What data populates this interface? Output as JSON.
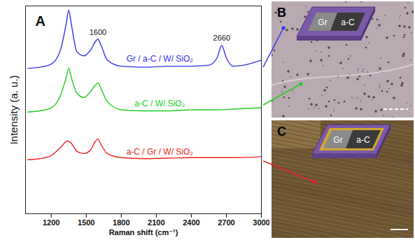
{
  "chart_data": {
    "type": "line",
    "panel_label": "A",
    "xlabel": "Raman shift (cm⁻¹)",
    "ylabel": "Intensity (a. u.)",
    "xlim": [
      980,
      3000
    ],
    "xticks": [
      1200,
      1500,
      1800,
      2100,
      2400,
      2700,
      3000
    ],
    "ylim": [
      0,
      100
    ],
    "tick_labels": "x",
    "grid": false,
    "series": [
      {
        "name": "Gr / a-C / W/ SiO₂",
        "color": "#3333ee",
        "x": [
          1000,
          1100,
          1200,
          1280,
          1330,
          1350,
          1370,
          1420,
          1480,
          1540,
          1580,
          1600,
          1620,
          1680,
          1800,
          2000,
          2200,
          2400,
          2550,
          2620,
          2660,
          2700,
          2760,
          2850,
          2950,
          3000
        ],
        "values": [
          70,
          70.5,
          72,
          79,
          92,
          98,
          92,
          78,
          76,
          79,
          83,
          84,
          82,
          74,
          71,
          70.5,
          71,
          71,
          71.5,
          75,
          81,
          75,
          71,
          71.5,
          73,
          74
        ]
      },
      {
        "name": "a-C / W/ SiO₂",
        "color": "#22cc22",
        "x": [
          1000,
          1100,
          1200,
          1280,
          1330,
          1350,
          1370,
          1420,
          1480,
          1540,
          1580,
          1600,
          1620,
          1680,
          1800,
          2000,
          2200,
          2400,
          2600,
          2800,
          3000
        ],
        "values": [
          49,
          49.5,
          51,
          57,
          66,
          70,
          66,
          58,
          56,
          59,
          62,
          63,
          61,
          54,
          50,
          49.5,
          49.5,
          50,
          50,
          50.5,
          51
        ]
      },
      {
        "name": "a-C / Gr / W/ SiO₂",
        "color": "#ee2222",
        "x": [
          1000,
          1100,
          1200,
          1280,
          1340,
          1370,
          1420,
          1480,
          1540,
          1580,
          1600,
          1620,
          1680,
          1800,
          2000,
          2400,
          2800,
          3000
        ],
        "values": [
          26,
          26.5,
          28,
          32,
          35,
          34,
          30,
          29,
          31,
          35,
          36,
          34,
          29,
          27,
          26.5,
          27,
          27,
          27.5
        ]
      }
    ],
    "annotations": [
      {
        "text": "1600",
        "x": 1600
      },
      {
        "text": "2660",
        "x": 2660
      }
    ]
  },
  "panels": [
    {
      "label": "B",
      "inset": [
        "Gr",
        "a-C"
      ]
    },
    {
      "label": "C",
      "inset": [
        "Gr",
        "a-C"
      ]
    }
  ]
}
